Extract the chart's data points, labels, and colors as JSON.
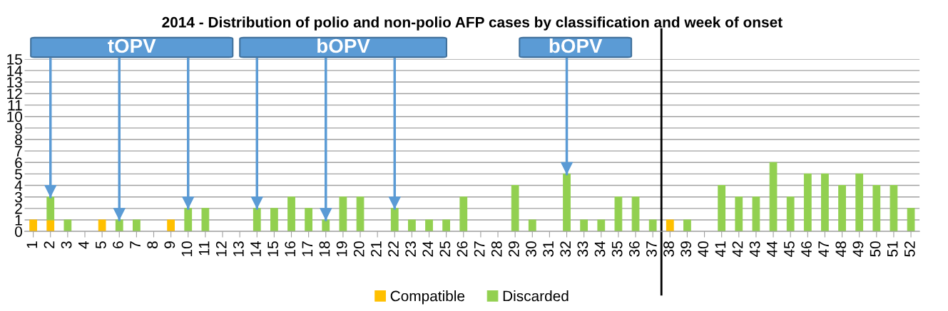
{
  "chart_data": {
    "type": "bar",
    "stacked": true,
    "title": "2014 - Distribution of polio and non-polio AFP cases by classification and week of onset",
    "x": [
      1,
      2,
      3,
      4,
      5,
      6,
      7,
      8,
      9,
      10,
      11,
      12,
      13,
      14,
      15,
      16,
      17,
      18,
      19,
      20,
      21,
      22,
      23,
      24,
      25,
      26,
      27,
      28,
      29,
      30,
      31,
      32,
      33,
      34,
      35,
      36,
      37,
      38,
      39,
      40,
      41,
      42,
      43,
      44,
      45,
      46,
      47,
      48,
      49,
      50,
      51,
      52
    ],
    "xlim": [
      0.5,
      52.5
    ],
    "xticks": [
      1,
      2,
      3,
      4,
      5,
      6,
      7,
      8,
      9,
      10,
      11,
      12,
      13,
      14,
      15,
      16,
      17,
      18,
      19,
      20,
      21,
      22,
      23,
      24,
      25,
      26,
      27,
      28,
      29,
      30,
      31,
      32,
      33,
      34,
      35,
      36,
      37,
      38,
      39,
      40,
      41,
      42,
      43,
      44,
      45,
      46,
      47,
      48,
      49,
      50,
      51,
      52
    ],
    "ylim": [
      0,
      15
    ],
    "yticks": [
      0,
      1,
      2,
      3,
      4,
      5,
      6,
      7,
      8,
      9,
      10,
      11,
      12,
      13,
      14,
      15
    ],
    "grid": "y",
    "legend": "bottom",
    "series": [
      {
        "name": "Compatible",
        "color": "#ffc000",
        "values": [
          1,
          1,
          null,
          null,
          1,
          null,
          null,
          null,
          1,
          null,
          null,
          null,
          null,
          null,
          null,
          null,
          null,
          null,
          null,
          null,
          null,
          null,
          null,
          null,
          null,
          null,
          null,
          null,
          null,
          null,
          null,
          null,
          null,
          null,
          null,
          null,
          null,
          1,
          null,
          null,
          null,
          null,
          null,
          null,
          null,
          null,
          null,
          null,
          null,
          null,
          null,
          null
        ]
      },
      {
        "name": "Discarded",
        "color": "#92d050",
        "values": [
          null,
          2,
          1,
          null,
          null,
          1,
          1,
          null,
          null,
          2,
          2,
          null,
          null,
          2,
          2,
          3,
          2,
          1,
          3,
          3,
          null,
          2,
          1,
          1,
          1,
          3,
          null,
          null,
          4,
          1,
          null,
          5,
          1,
          1,
          3,
          3,
          1,
          null,
          1,
          null,
          4,
          3,
          3,
          6,
          3,
          5,
          5,
          4,
          5,
          4,
          4,
          2
        ]
      }
    ],
    "annotations": [
      "tOPV",
      "bOPV",
      "bOPV"
    ],
    "ref_lines": [
      {
        "axis": "x",
        "value": 2,
        "color": "#5b9bd5",
        "line_style": "solid"
      },
      {
        "axis": "x",
        "value": 6,
        "color": "#5b9bd5",
        "line_style": "solid"
      },
      {
        "axis": "x",
        "value": 10,
        "color": "#5b9bd5",
        "line_style": "solid"
      },
      {
        "axis": "x",
        "value": 14,
        "color": "#5b9bd5",
        "line_style": "solid"
      },
      {
        "axis": "x",
        "value": 18,
        "color": "#5b9bd5",
        "line_style": "solid"
      },
      {
        "axis": "x",
        "value": 22,
        "color": "#5b9bd5",
        "line_style": "solid"
      },
      {
        "axis": "x",
        "value": 32,
        "color": "#5b9bd5",
        "line_style": "solid"
      },
      {
        "axis": "x",
        "value": 37.5,
        "color": "#000000",
        "line_style": "solid"
      }
    ]
  }
}
